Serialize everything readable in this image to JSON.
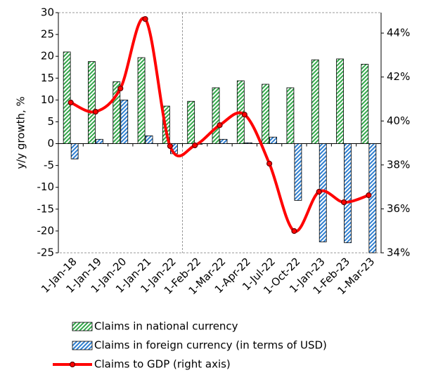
{
  "chart_data": {
    "type": "bar_line",
    "y_label": "y/y growth, %",
    "categories": [
      "1-Jan-18",
      "1-Jan-19",
      "1-Jan-20",
      "1-Jan-21",
      "1-Jan-22",
      "1-Feb-22",
      "1-Mar-22",
      "1-Apr-22",
      "1-Jul-22",
      "1-Oct-22",
      "1-Jan-23",
      "1-Feb-23",
      "1-Mar-23"
    ],
    "series": [
      {
        "name": "Claims in national currency",
        "color": "#33a84a",
        "type": "bar",
        "values": [
          21,
          18.8,
          14.2,
          19.7,
          8.6,
          9.7,
          12.8,
          14.4,
          13.6,
          12.8,
          19.2,
          19.4,
          18.2
        ]
      },
      {
        "name": "Claims in foreign currency (in terms of USD)",
        "color": "#2f7fd0",
        "type": "bar",
        "values": [
          -3.5,
          1,
          10,
          1.8,
          -2.3,
          0,
          1,
          0.2,
          1.5,
          -13,
          -22.5,
          -22.7,
          -25
        ]
      },
      {
        "name": "Claims to GDP (right axis)",
        "color": "#ff0000",
        "type": "line",
        "axis": "y2",
        "values": [
          40.84,
          40.42,
          41.48,
          44.64,
          38.86,
          38.89,
          39.81,
          40.29,
          38.06,
          34.99,
          36.78,
          36.3,
          36.62
        ]
      }
    ],
    "ylim": [
      -25,
      30
    ],
    "yticks": [
      -25,
      -20,
      -15,
      -10,
      -5,
      0,
      5,
      10,
      15,
      20,
      25,
      30
    ],
    "y2lim": [
      34,
      44.93
    ],
    "y2ticks": [
      {
        "value": 34,
        "label": "34%"
      },
      {
        "value": 36,
        "label": "36%"
      },
      {
        "value": 38,
        "label": "38%"
      },
      {
        "value": 40,
        "label": "40%"
      },
      {
        "value": 42,
        "label": "42%"
      },
      {
        "value": 44,
        "label": "44%"
      }
    ]
  }
}
